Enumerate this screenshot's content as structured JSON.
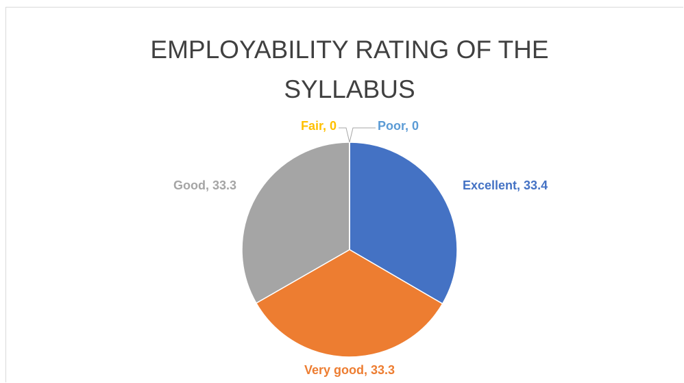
{
  "chart_data": {
    "type": "pie",
    "title": "EMPLOYABILITY RATING OF THE SYLLABUS",
    "categories": [
      "Excellent",
      "Very good",
      "Good",
      "Fair",
      "Poor"
    ],
    "values": [
      33.4,
      33.3,
      33.3,
      0,
      0
    ],
    "value_labels": [
      "Excellent, 33.4",
      "Very good, 33.3",
      "Good, 33.3",
      "Fair, 0",
      "Poor, 0"
    ],
    "colors": [
      "#4472c4",
      "#ed7d31",
      "#a5a5a5",
      "#ffc000",
      "#5b9bd5"
    ]
  }
}
